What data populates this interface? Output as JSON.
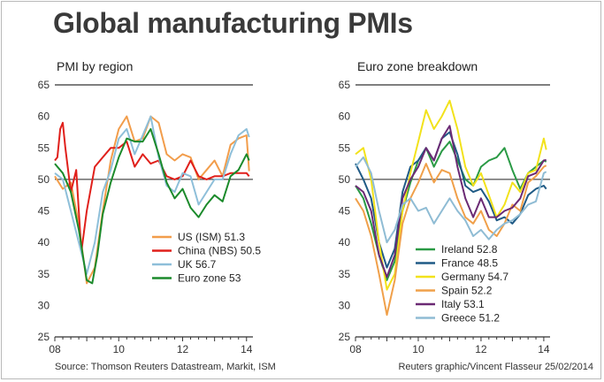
{
  "title": "Global manufacturing PMIs",
  "source": "Source: Thomson Reuters Datastream, Markit, ISM",
  "credit": "Reuters graphic/Vincent Flasseur 25/02/2014",
  "chart_data": [
    {
      "type": "line",
      "title": "PMI by region",
      "xlabel": "",
      "ylabel": "",
      "xlim": [
        2008.0,
        2014.2
      ],
      "ylim": [
        25,
        65
      ],
      "x_ticks": [
        2008,
        2010,
        2012,
        2014
      ],
      "x_tick_labels": [
        "08",
        "10",
        "12",
        "14"
      ],
      "y_ticks": [
        25,
        30,
        35,
        40,
        45,
        50,
        55,
        60,
        65
      ],
      "reference_line": 50,
      "grid": false,
      "legend_position": "bottom-right",
      "series": [
        {
          "name": "US (ISM) 51.3",
          "color": "#f29d4b",
          "x": [
            2008.0,
            2008.25,
            2008.5,
            2008.75,
            2009.0,
            2009.25,
            2009.5,
            2009.75,
            2010.0,
            2010.25,
            2010.5,
            2010.75,
            2011.0,
            2011.25,
            2011.5,
            2011.75,
            2012.0,
            2012.25,
            2012.5,
            2012.75,
            2013.0,
            2013.25,
            2013.5,
            2013.75,
            2014.0,
            2014.08
          ],
          "values": [
            50.5,
            48.5,
            49.5,
            43,
            33.5,
            36,
            45,
            53,
            58,
            60,
            56,
            56.5,
            60,
            59,
            54,
            53,
            54,
            53.5,
            50,
            51.5,
            53,
            50.5,
            55.5,
            56.5,
            57,
            51.3
          ]
        },
        {
          "name": "China (NBS) 50.5",
          "color": "#e0201b",
          "x": [
            2008.0,
            2008.08,
            2008.17,
            2008.25,
            2008.33,
            2008.5,
            2008.67,
            2008.83,
            2009.0,
            2009.25,
            2009.5,
            2009.75,
            2010.0,
            2010.25,
            2010.5,
            2010.75,
            2011.0,
            2011.25,
            2011.5,
            2011.75,
            2012.0,
            2012.25,
            2012.5,
            2012.75,
            2013.0,
            2013.25,
            2013.5,
            2013.75,
            2014.0,
            2014.08
          ],
          "values": [
            53,
            53.5,
            58,
            59,
            55,
            48,
            51.5,
            38.5,
            45,
            52,
            53.5,
            55,
            55,
            56,
            52,
            54,
            52.5,
            53,
            50.5,
            50,
            50.5,
            53,
            50.5,
            50,
            50.5,
            50.5,
            51,
            51,
            51,
            50.5
          ]
        },
        {
          "name": "UK 56.7",
          "color": "#8ebfd9",
          "x": [
            2008.0,
            2008.25,
            2008.5,
            2008.75,
            2009.0,
            2009.25,
            2009.5,
            2009.75,
            2010.0,
            2010.25,
            2010.5,
            2010.75,
            2011.0,
            2011.25,
            2011.5,
            2011.75,
            2012.0,
            2012.25,
            2012.5,
            2012.75,
            2013.0,
            2013.25,
            2013.5,
            2013.75,
            2014.0,
            2014.08
          ],
          "values": [
            51,
            50,
            45,
            40,
            35,
            40,
            48,
            51.5,
            56.5,
            58,
            54,
            57,
            60,
            53.5,
            49,
            48,
            51,
            50.5,
            46,
            48,
            50,
            50,
            54,
            57,
            58,
            56.7
          ]
        },
        {
          "name": "Euro zone 53",
          "color": "#1b8a2b",
          "x": [
            2008.0,
            2008.25,
            2008.5,
            2008.75,
            2009.0,
            2009.17,
            2009.33,
            2009.5,
            2009.75,
            2010.0,
            2010.25,
            2010.5,
            2010.75,
            2011.0,
            2011.25,
            2011.5,
            2011.75,
            2012.0,
            2012.25,
            2012.5,
            2012.75,
            2013.0,
            2013.25,
            2013.5,
            2013.75,
            2014.0,
            2014.08
          ],
          "values": [
            52.5,
            51,
            48,
            42,
            34,
            33.5,
            38,
            44.5,
            49.5,
            53.5,
            56.5,
            56,
            56,
            58,
            54,
            49.5,
            47,
            48.5,
            45.5,
            44,
            46,
            47.5,
            46.5,
            50.5,
            51.5,
            54,
            53
          ]
        }
      ]
    },
    {
      "type": "line",
      "title": "Euro zone breakdown",
      "xlabel": "",
      "ylabel": "",
      "xlim": [
        2008.0,
        2014.2
      ],
      "ylim": [
        25,
        65
      ],
      "x_ticks": [
        2008,
        2010,
        2012,
        2014
      ],
      "x_tick_labels": [
        "08",
        "10",
        "12",
        "14"
      ],
      "y_ticks": [
        25,
        30,
        35,
        40,
        45,
        50,
        55,
        60,
        65
      ],
      "reference_line": 50,
      "grid": false,
      "legend_position": "bottom-right",
      "series": [
        {
          "name": "Ireland 52.8",
          "color": "#2a9a45",
          "x": [
            2008.0,
            2008.25,
            2008.5,
            2008.75,
            2009.0,
            2009.25,
            2009.5,
            2009.75,
            2010.0,
            2010.25,
            2010.5,
            2010.75,
            2011.0,
            2011.25,
            2011.5,
            2011.75,
            2012.0,
            2012.25,
            2012.5,
            2012.75,
            2013.0,
            2013.25,
            2013.5,
            2013.75,
            2014.0,
            2014.08
          ],
          "values": [
            49,
            47,
            43,
            38,
            34,
            37,
            45,
            49.5,
            53,
            55,
            52,
            54.5,
            56,
            53,
            50,
            49,
            52,
            53,
            53.5,
            55,
            51.5,
            48.5,
            51,
            52,
            53,
            52.8
          ]
        },
        {
          "name": "France 48.5",
          "color": "#1f5a85",
          "x": [
            2008.0,
            2008.25,
            2008.5,
            2008.75,
            2009.0,
            2009.25,
            2009.5,
            2009.75,
            2010.0,
            2010.25,
            2010.5,
            2010.75,
            2011.0,
            2011.25,
            2011.5,
            2011.75,
            2012.0,
            2012.25,
            2012.5,
            2012.75,
            2013.0,
            2013.25,
            2013.5,
            2013.75,
            2014.0,
            2014.08
          ],
          "values": [
            52.5,
            50,
            47,
            40,
            36,
            39,
            48,
            52,
            53,
            55,
            53,
            56.5,
            57.5,
            54,
            49,
            48,
            48.5,
            46.5,
            43.5,
            44,
            43,
            44.5,
            47.5,
            48.5,
            49,
            48.5
          ]
        },
        {
          "name": "Germany 54.7",
          "color": "#f2e21b",
          "x": [
            2008.0,
            2008.25,
            2008.5,
            2008.75,
            2009.0,
            2009.25,
            2009.5,
            2009.75,
            2010.0,
            2010.25,
            2010.5,
            2010.75,
            2011.0,
            2011.25,
            2011.5,
            2011.75,
            2012.0,
            2012.25,
            2012.5,
            2012.75,
            2013.0,
            2013.25,
            2013.5,
            2013.75,
            2014.0,
            2014.08
          ],
          "values": [
            54,
            55,
            50,
            40,
            32.5,
            35,
            45,
            51,
            56,
            61,
            58,
            60,
            62.5,
            58,
            52,
            49,
            51,
            47.5,
            44,
            46,
            49.5,
            48,
            51,
            51.5,
            56.5,
            54.7
          ]
        },
        {
          "name": "Spain 52.2",
          "color": "#f0a04a",
          "x": [
            2008.0,
            2008.25,
            2008.5,
            2008.75,
            2009.0,
            2009.25,
            2009.5,
            2009.75,
            2010.0,
            2010.25,
            2010.5,
            2010.75,
            2011.0,
            2011.25,
            2011.5,
            2011.75,
            2012.0,
            2012.25,
            2012.5,
            2012.75,
            2013.0,
            2013.25,
            2013.5,
            2013.75,
            2014.0,
            2014.08
          ],
          "values": [
            47,
            45,
            41,
            35,
            28.5,
            34,
            43,
            47,
            49.5,
            52.5,
            49.5,
            51.5,
            51,
            47,
            44,
            43,
            45,
            42,
            41,
            43,
            46,
            45,
            49.5,
            50.5,
            52,
            52.2
          ]
        },
        {
          "name": "Italy 53.1",
          "color": "#6b2a74",
          "x": [
            2008.0,
            2008.25,
            2008.5,
            2008.75,
            2009.0,
            2009.25,
            2009.5,
            2009.75,
            2010.0,
            2010.25,
            2010.5,
            2010.75,
            2011.0,
            2011.25,
            2011.5,
            2011.75,
            2012.0,
            2012.25,
            2012.5,
            2012.75,
            2013.0,
            2013.25,
            2013.5,
            2013.75,
            2014.0,
            2014.08
          ],
          "values": [
            49,
            48,
            45,
            38,
            34.5,
            38,
            47,
            50,
            52,
            55,
            53,
            56.5,
            58.5,
            52,
            47,
            44,
            47,
            44,
            44,
            45,
            45.5,
            47,
            50.5,
            51,
            53,
            53.1
          ]
        },
        {
          "name": "Greece 51.2",
          "color": "#8fbcd4",
          "x": [
            2008.0,
            2008.25,
            2008.5,
            2008.75,
            2009.0,
            2009.25,
            2009.5,
            2009.75,
            2010.0,
            2010.25,
            2010.5,
            2010.75,
            2011.0,
            2011.25,
            2011.5,
            2011.75,
            2012.0,
            2012.25,
            2012.5,
            2012.75,
            2013.0,
            2013.25,
            2013.5,
            2013.75,
            2014.0,
            2014.08
          ],
          "values": [
            52,
            53.5,
            51,
            45,
            40,
            42,
            46,
            47,
            45,
            45.5,
            43,
            45,
            47,
            45,
            43.5,
            41,
            42,
            40.5,
            42,
            43,
            43.5,
            44.5,
            46,
            46.5,
            51,
            51.2
          ]
        }
      ]
    }
  ]
}
